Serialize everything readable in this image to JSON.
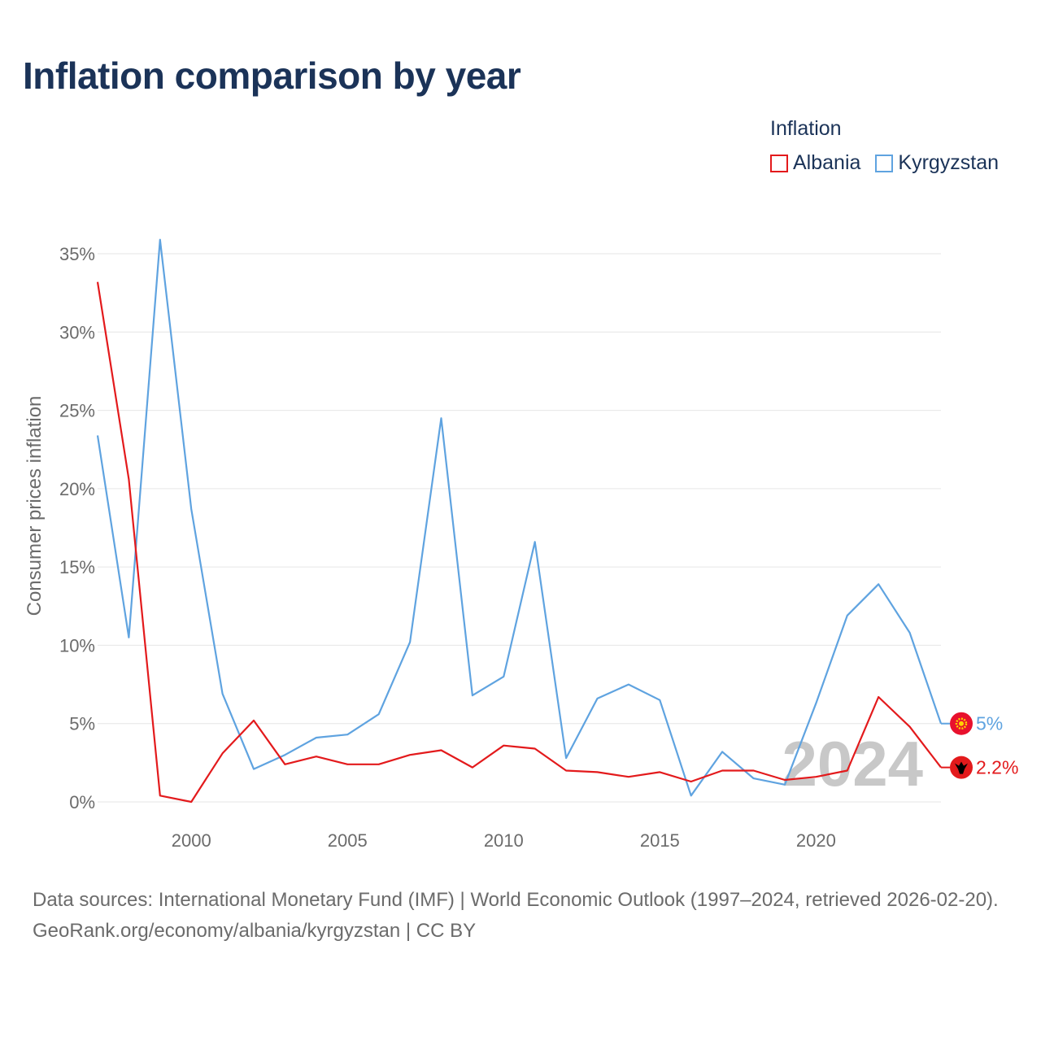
{
  "title": "Inflation comparison by year",
  "legend": {
    "title": "Inflation",
    "items": [
      {
        "label": "Albania",
        "color": "#e31a1c"
      },
      {
        "label": "Kyrgyzstan",
        "color": "#5fa3e0"
      }
    ]
  },
  "chart_data": {
    "type": "line",
    "title": "Inflation comparison by year",
    "xlabel": "",
    "ylabel": "Consumer prices inflation",
    "xlim": [
      1997,
      2024
    ],
    "ylim": [
      0,
      35
    ],
    "x_ticks": [
      2000,
      2005,
      2010,
      2015,
      2020
    ],
    "x_tick_labels": [
      "2000",
      "2005",
      "2010",
      "2015",
      "2020"
    ],
    "y_ticks": [
      0,
      5,
      10,
      15,
      20,
      25,
      30,
      35
    ],
    "y_tick_labels": [
      "0%",
      "5%",
      "10%",
      "15%",
      "20%",
      "25%",
      "30%",
      "35%"
    ],
    "grid": true,
    "watermark_year": "2024",
    "x": [
      1997,
      1998,
      1999,
      2000,
      2001,
      2002,
      2003,
      2004,
      2005,
      2006,
      2007,
      2008,
      2009,
      2010,
      2011,
      2012,
      2013,
      2014,
      2015,
      2016,
      2017,
      2018,
      2019,
      2020,
      2021,
      2022,
      2023,
      2024
    ],
    "series": [
      {
        "name": "Albania",
        "color": "#e31a1c",
        "end_label": "2.2%",
        "values": [
          33.2,
          20.6,
          0.4,
          0.0,
          3.1,
          5.2,
          2.4,
          2.9,
          2.4,
          2.4,
          3.0,
          3.3,
          2.2,
          3.6,
          3.4,
          2.0,
          1.9,
          1.6,
          1.9,
          1.3,
          2.0,
          2.0,
          1.4,
          1.6,
          2.0,
          6.7,
          4.8,
          2.2
        ]
      },
      {
        "name": "Kyrgyzstan",
        "color": "#5fa3e0",
        "end_label": "5%",
        "values": [
          23.4,
          10.5,
          35.9,
          18.7,
          6.9,
          2.1,
          3.0,
          4.1,
          4.3,
          5.6,
          10.2,
          24.5,
          6.8,
          8.0,
          16.6,
          2.8,
          6.6,
          7.5,
          6.5,
          0.4,
          3.2,
          1.5,
          1.1,
          6.3,
          11.9,
          13.9,
          10.8,
          5.0
        ]
      }
    ]
  },
  "footer": {
    "sources": "Data sources: International Monetary Fund (IMF) | World Economic Outlook (1997–2024, retrieved 2026-02-20).",
    "credit": "GeoRank.org/economy/albania/kyrgyzstan | CC BY"
  }
}
